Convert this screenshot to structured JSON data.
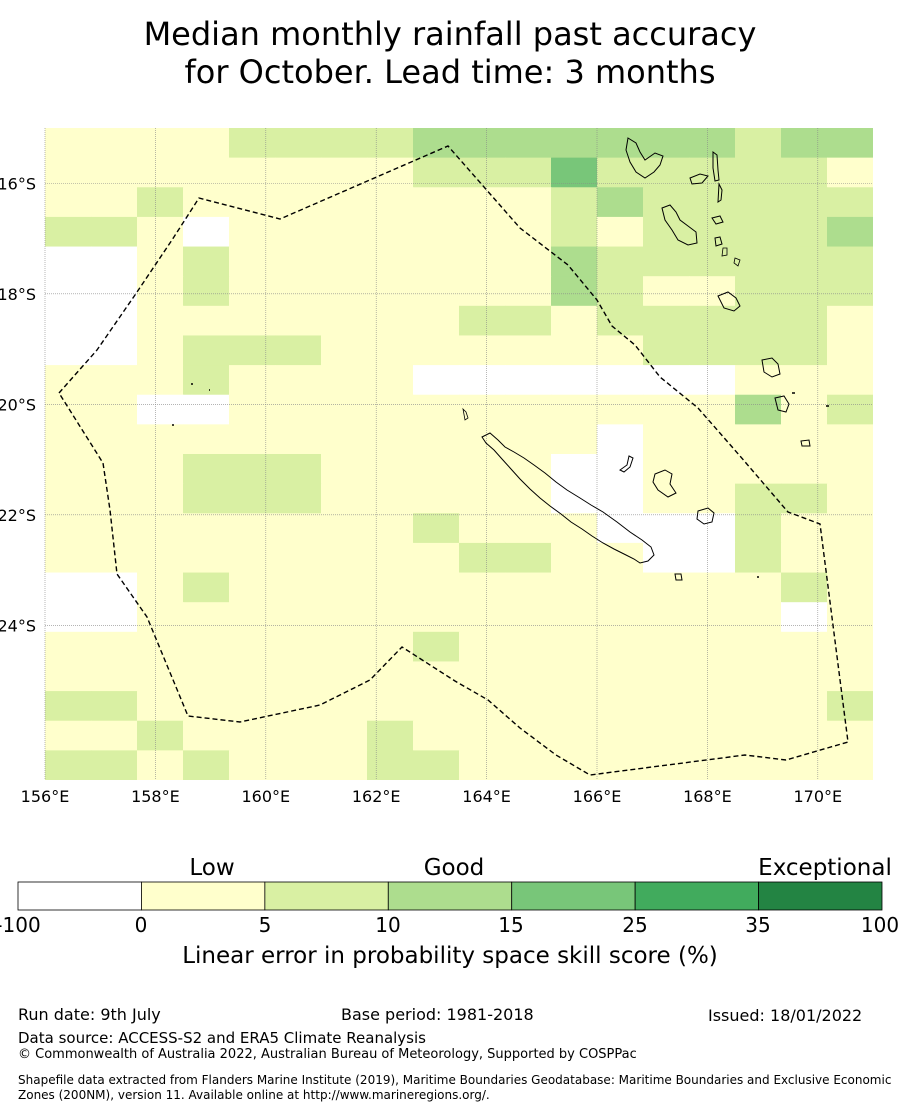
{
  "title_line1": "Median monthly rainfall past accuracy",
  "title_line2": "for October. Lead time: 3 months",
  "map": {
    "lon_range": [
      156,
      171
    ],
    "lat_range": [
      -26.8,
      -15.0
    ],
    "lon_ticks": [
      "156°E",
      "158°E",
      "160°E",
      "162°E",
      "164°E",
      "166°E",
      "168°E",
      "170°E"
    ],
    "lat_ticks": [
      "16°S",
      "18°S",
      "20°S",
      "22°S",
      "24°S"
    ],
    "grid": true,
    "grid_shading": [
      "bbbcccdddddcdd",
      "bbbbbbcceccccb",
      "bcbbbbbbcdcccc",
      "cbabbbbbcbcccd",
      "abcbbbbbdccccc",
      "abcbbbbbdcbccc",
      "abbbbbbcbccccb",
      "abccbbbbbbcccb",
      "bbcbbbaaaaabbb",
      "baabbbbbbbbdbc",
      "bbbbbbbbbabbbb",
      "bbccbbbbaabbbb",
      "bbccbbbbaabccb",
      "bbbbbbcbbaacbb",
      "bbbbbbbcbbacbb",
      "abcbbbbbbbbbcb",
      "abbbbbbbbbbbab",
      "bbbbbbcbbbbbbb",
      "bbbbbbbbbbbbbb",
      "cbbbbbbbbbbbbc",
      "bcbbbcbbbbbbbb",
      "cbcbbccbbbbbbb"
    ]
  },
  "legend": {
    "categories": [
      "Low",
      "Good",
      "Exceptional"
    ],
    "bounds": [
      "-100",
      "0",
      "5",
      "10",
      "15",
      "25",
      "35",
      "100"
    ],
    "colors": [
      "#ffffff",
      "#ffffcc",
      "#d9f0a3",
      "#addd8e",
      "#78c679",
      "#41ab5d",
      "#238443"
    ],
    "title": "Linear error in probability space skill score (%)"
  },
  "footer": {
    "run_date": "Run date: 9th July",
    "base_period": "Base period: 1981-2018",
    "issued": "Issued: 18/01/2022",
    "data_source": "Data source: ACCESS-S2 and ERA5 Climate Reanalysis",
    "copyright": "© Commonwealth of Australia 2022, Australian Bureau of Meteorology, Supported by COSPPac",
    "shapefile": "Shapefile data extracted from Flanders Marine Institute (2019), Maritime Boundaries Geodatabase: Maritime Boundaries and Exclusive Economic Zones (200NM), version 11. Available online at http://www.marineregions.org/."
  }
}
